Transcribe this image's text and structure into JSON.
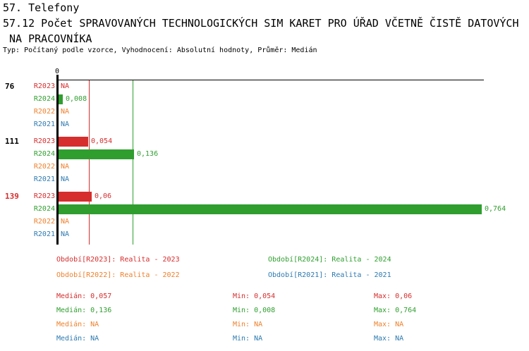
{
  "header": {
    "section": "57. Telefony",
    "title_line1": "57.12 Počet SPRAVOVANÝCH TECHNOLOGICKÝCH SIM KARET PRO ÚŘAD VČETNĚ ČISTĚ DATOVÝCH",
    "title_line2": " NA PRACOVNÍKA",
    "meta": "Typ: Počítaný podle vzorce, Vyhodnocení: Absolutní hodnoty, Průměr: Medián"
  },
  "chart_data": {
    "type": "bar",
    "orientation": "horizontal",
    "x_zero_label": "0",
    "xlim": [
      0,
      0.77
    ],
    "grid": false,
    "na_text": "NA",
    "series": [
      {
        "id": "R2023",
        "color": "#d62d2d",
        "legend_label": "Období[R2023]: Realita - 2023"
      },
      {
        "id": "R2024",
        "color": "#2f9e2f",
        "legend_label": "Období[R2024]: Realita - 2024"
      },
      {
        "id": "R2022",
        "color": "#ee812c",
        "legend_label": "Období[R2022]: Realita - 2022"
      },
      {
        "id": "R2021",
        "color": "#2d7ab0",
        "legend_label": "Období[R2021]: Realita - 2021"
      }
    ],
    "categories": [
      "76",
      "111",
      "139"
    ],
    "groups": [
      {
        "label": "76",
        "label_color": "#000000",
        "bars": [
          {
            "series": "R2023",
            "value": null,
            "label": "NA"
          },
          {
            "series": "R2024",
            "value": 0.008,
            "label": "0,008"
          },
          {
            "series": "R2022",
            "value": null,
            "label": "NA"
          },
          {
            "series": "R2021",
            "value": null,
            "label": "NA"
          }
        ]
      },
      {
        "label": "111",
        "label_color": "#000000",
        "bars": [
          {
            "series": "R2023",
            "value": 0.054,
            "label": "0,054"
          },
          {
            "series": "R2024",
            "value": 0.136,
            "label": "0,136"
          },
          {
            "series": "R2022",
            "value": null,
            "label": "NA"
          },
          {
            "series": "R2021",
            "value": null,
            "label": "NA"
          }
        ]
      },
      {
        "label": "139",
        "label_color": "#d62d2d",
        "bars": [
          {
            "series": "R2023",
            "value": 0.06,
            "label": "0,06"
          },
          {
            "series": "R2024",
            "value": 0.764,
            "label": "0,764"
          },
          {
            "series": "R2022",
            "value": null,
            "label": "NA"
          },
          {
            "series": "R2021",
            "value": null,
            "label": "NA"
          }
        ]
      }
    ],
    "median_lines": [
      {
        "series": "R2023",
        "value": 0.057
      },
      {
        "series": "R2024",
        "value": 0.136
      }
    ]
  },
  "legend": [
    {
      "series": "R2023",
      "text": "Období[R2023]: Realita - 2023"
    },
    {
      "series": "R2024",
      "text": "Období[R2024]: Realita - 2024"
    },
    {
      "series": "R2022",
      "text": "Období[R2022]: Realita - 2022"
    },
    {
      "series": "R2021",
      "text": "Období[R2021]: Realita - 2021"
    }
  ],
  "stats_labels": {
    "median": "Medián",
    "min": "Min",
    "max": "Max"
  },
  "stats": [
    {
      "series": "R2023",
      "median": "0,057",
      "min": "0,054",
      "max": "0,06"
    },
    {
      "series": "R2024",
      "median": "0,136",
      "min": "0,008",
      "max": "0,764"
    },
    {
      "series": "R2022",
      "median": "NA",
      "min": "NA",
      "max": "NA"
    },
    {
      "series": "R2021",
      "median": "NA",
      "min": "NA",
      "max": "NA"
    }
  ]
}
